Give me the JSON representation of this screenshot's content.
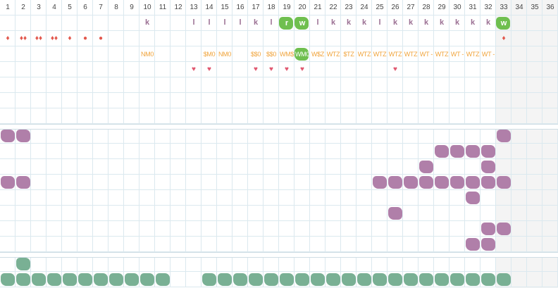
{
  "column_numbers": [
    "1",
    "2",
    "3",
    "4",
    "5",
    "6",
    "7",
    "8",
    "9",
    "10",
    "11",
    "12",
    "13",
    "14",
    "15",
    "16",
    "17",
    "18",
    "19",
    "20",
    "21",
    "22",
    "23",
    "24",
    "25",
    "26",
    "27",
    "28",
    "29",
    "30",
    "31",
    "32",
    "33",
    "34",
    "35",
    "36"
  ],
  "highlighted_columns": [
    33,
    34,
    35,
    36
  ],
  "top_band": {
    "letters": [
      {
        "col": 10,
        "text": "k"
      },
      {
        "col": 13,
        "text": "l"
      },
      {
        "col": 14,
        "text": "l"
      },
      {
        "col": 15,
        "text": "l"
      },
      {
        "col": 16,
        "text": "l"
      },
      {
        "col": 17,
        "text": "k"
      },
      {
        "col": 18,
        "text": "l"
      },
      {
        "col": 21,
        "text": "l"
      },
      {
        "col": 22,
        "text": "k"
      },
      {
        "col": 23,
        "text": "k"
      },
      {
        "col": 24,
        "text": "k"
      },
      {
        "col": 25,
        "text": "l"
      },
      {
        "col": 26,
        "text": "k"
      },
      {
        "col": 27,
        "text": "k"
      },
      {
        "col": 28,
        "text": "k"
      },
      {
        "col": 29,
        "text": "k"
      },
      {
        "col": 30,
        "text": "k"
      },
      {
        "col": 31,
        "text": "k"
      },
      {
        "col": 32,
        "text": "k"
      }
    ],
    "green_letters": [
      {
        "col": 19,
        "text": "r"
      },
      {
        "col": 20,
        "text": "w"
      },
      {
        "col": 33,
        "text": "w"
      }
    ],
    "drops": [
      {
        "col": 1,
        "text": "♦"
      },
      {
        "col": 2,
        "text": "♦♦"
      },
      {
        "col": 3,
        "text": "♦♦"
      },
      {
        "col": 4,
        "text": "♦♦"
      },
      {
        "col": 5,
        "text": "♦"
      },
      {
        "col": 6,
        "text": "●"
      },
      {
        "col": 7,
        "text": "●"
      },
      {
        "col": 33,
        "text": "♦"
      }
    ],
    "codes": [
      {
        "col": 10,
        "text": "NM0"
      },
      {
        "col": 14,
        "text": "$M0"
      },
      {
        "col": 15,
        "text": "NM0"
      },
      {
        "col": 17,
        "text": "$$0"
      },
      {
        "col": 18,
        "text": "$$0"
      },
      {
        "col": 19,
        "text": "WM$"
      },
      {
        "col": 21,
        "text": "W$Z"
      },
      {
        "col": 22,
        "text": "WTZ"
      },
      {
        "col": 23,
        "text": "$TZ"
      },
      {
        "col": 24,
        "text": "WTZ"
      },
      {
        "col": 25,
        "text": "WTZ"
      },
      {
        "col": 26,
        "text": "WTZ"
      },
      {
        "col": 27,
        "text": "WTZ"
      },
      {
        "col": 28,
        "text": "WT -"
      },
      {
        "col": 29,
        "text": "WTZ"
      },
      {
        "col": 30,
        "text": "WT -"
      },
      {
        "col": 31,
        "text": "WTZ"
      },
      {
        "col": 32,
        "text": "WT -"
      }
    ],
    "code_green": {
      "col": 20,
      "text": "WM0"
    },
    "hearts": [
      13,
      14,
      17,
      18,
      19,
      20,
      26
    ]
  },
  "middle_band_blobs": [
    {
      "row": 0,
      "cols": [
        1,
        2,
        33
      ]
    },
    {
      "row": 1,
      "cols": [
        29,
        30,
        31,
        32
      ]
    },
    {
      "row": 2,
      "cols": [
        28,
        32
      ]
    },
    {
      "row": 3,
      "cols": [
        1,
        2,
        25,
        26,
        27,
        28,
        29,
        30,
        31,
        32,
        33
      ]
    },
    {
      "row": 4,
      "cols": [
        31
      ]
    },
    {
      "row": 5,
      "cols": [
        26
      ]
    },
    {
      "row": 6,
      "cols": [
        32,
        33
      ]
    },
    {
      "row": 7,
      "cols": [
        31,
        32
      ]
    }
  ],
  "bottom_band_blobs": [
    {
      "row": 0,
      "cols": [
        2
      ]
    },
    {
      "row": 1,
      "cols": [
        1,
        2,
        3,
        4,
        5,
        6,
        7,
        8,
        9,
        10,
        11,
        14,
        15,
        16,
        17,
        18,
        19,
        20,
        21,
        22,
        23,
        24,
        25,
        26,
        27,
        28,
        29,
        30,
        31,
        32,
        33
      ]
    }
  ],
  "colors": {
    "grid_line": "#dbe9ef",
    "letter_purple": "#9b6f93",
    "green_tag": "#6fbf4f",
    "orange_code": "#f0a43c",
    "drop_red": "#e2574c",
    "heart_pink": "#e0576f",
    "blob_purple": "#b07fa9",
    "blob_green": "#79b094"
  }
}
